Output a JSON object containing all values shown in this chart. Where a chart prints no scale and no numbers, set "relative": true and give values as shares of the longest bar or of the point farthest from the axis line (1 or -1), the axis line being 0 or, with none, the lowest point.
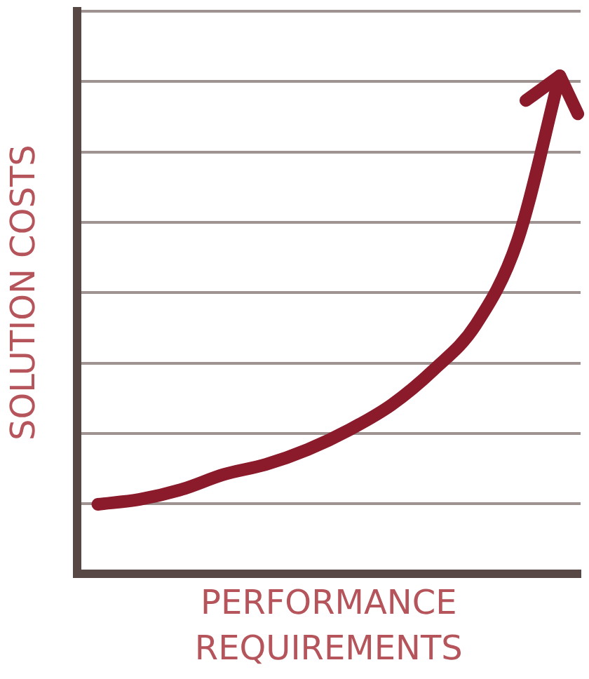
{
  "chart_data": {
    "type": "line",
    "relative": true,
    "xlabel": "PERFORMANCE REQUIREMENTS",
    "ylabel": "SOLUTION COSTS",
    "grid": "y",
    "marker": "none",
    "line_style": "solid",
    "categories": [
      null,
      null,
      null,
      null,
      null,
      null,
      null,
      null,
      null,
      null,
      null,
      null
    ],
    "series": [
      {
        "color": "#8b1a2b",
        "values": [
          0.14,
          0.15,
          0.17,
          0.2,
          0.22,
          0.25,
          0.29,
          0.34,
          0.41,
          0.5,
          0.67,
          1
        ]
      }
    ]
  }
}
